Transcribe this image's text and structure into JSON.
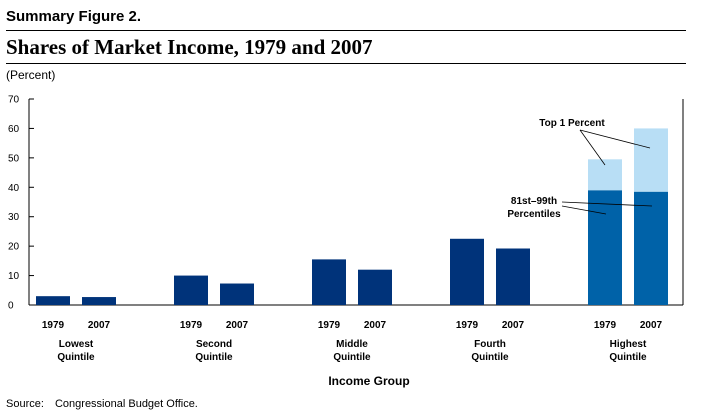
{
  "figure": {
    "label": "Summary Figure 2.",
    "title": "Shares of Market Income, 1979 and 2007",
    "unit": "(Percent)",
    "source_label": "Source:",
    "source_text": "Congressional Budget Office."
  },
  "colors": {
    "bar": "#00337a",
    "bar_lower": "#0062a8",
    "bar_top": "#b8def5",
    "axis": "#000000"
  },
  "chart_data": {
    "type": "bar",
    "stacked_in_last_group": true,
    "title": "Shares of Market Income, 1979 and 2007",
    "ylabel": "(Percent)",
    "xlabel": "Income Group",
    "ylim": [
      0,
      70
    ],
    "yticks": [
      0,
      10,
      20,
      30,
      40,
      50,
      60,
      70
    ],
    "grid": false,
    "years": [
      "1979",
      "2007"
    ],
    "groups": [
      {
        "label": [
          "Lowest",
          "Quintile"
        ],
        "values": [
          3.0,
          2.7
        ]
      },
      {
        "label": [
          "Second",
          "Quintile"
        ],
        "values": [
          10.0,
          7.3
        ]
      },
      {
        "label": [
          "Middle",
          "Quintile"
        ],
        "values": [
          15.5,
          12.0
        ]
      },
      {
        "label": [
          "Fourth",
          "Quintile"
        ],
        "values": [
          22.5,
          19.2
        ]
      },
      {
        "label": [
          "Highest",
          "Quintile"
        ],
        "segments": [
          {
            "name": "81st–99th Percentiles",
            "values": [
              39.0,
              38.5
            ]
          },
          {
            "name": "Top 1 Percent",
            "values": [
              10.5,
              21.5
            ]
          }
        ]
      }
    ],
    "annotations": {
      "top": "Top 1 Percent",
      "lower": [
        "81st–99th",
        "Percentiles"
      ]
    }
  }
}
